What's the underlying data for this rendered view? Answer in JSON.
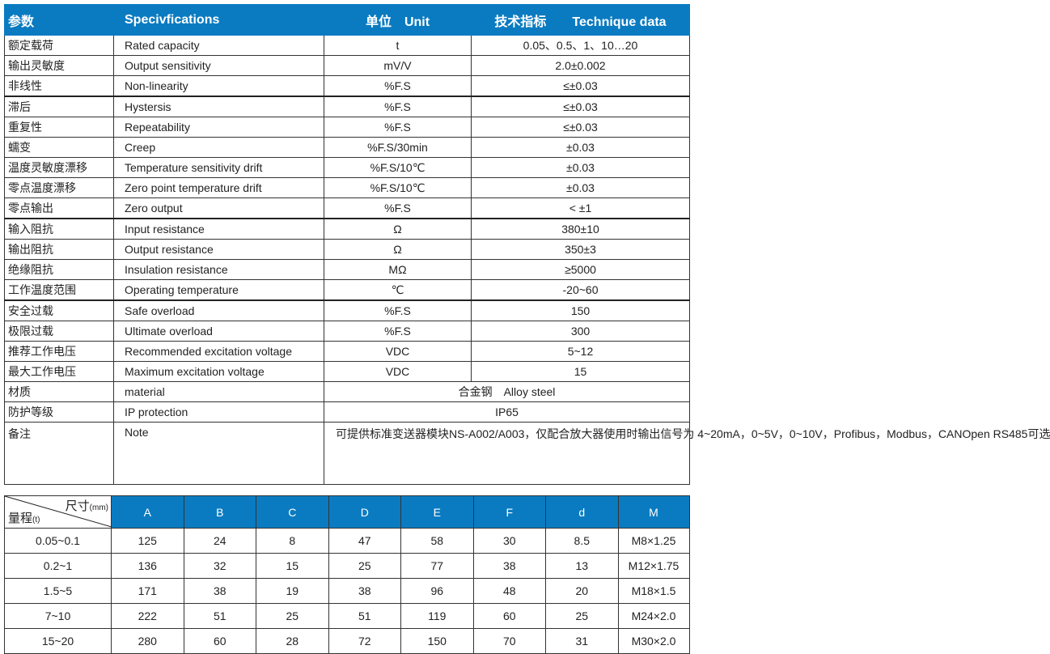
{
  "spec": {
    "headers": [
      "参数",
      "Specivfications",
      "单位　Unit",
      "技术指标　　Technique data"
    ],
    "rows": [
      [
        "额定载荷",
        "Rated capacity",
        "t",
        "0.05、0.5、1、10…20"
      ],
      [
        "输出灵敏度",
        "Output sensitivity",
        "mV/V",
        "2.0±0.002"
      ],
      [
        "非线性",
        "Non-linearity",
        "%F.S",
        "≤±0.03"
      ],
      [
        "滞后",
        "Hystersis",
        "%F.S",
        "≤±0.03"
      ],
      [
        "重复性",
        "Repeatability",
        "%F.S",
        "≤±0.03"
      ],
      [
        "蠕变",
        "Creep",
        "%F.S/30min",
        "±0.03"
      ],
      [
        "温度灵敏度漂移",
        "Temperature sensitivity drift",
        "%F.S/10℃",
        "±0.03"
      ],
      [
        "零点温度漂移",
        "Zero point temperature drift",
        "%F.S/10℃",
        "±0.03"
      ],
      [
        "零点输出",
        "Zero output",
        "%F.S",
        "< ±1"
      ],
      [
        "输入阻抗",
        "Input resistance",
        "Ω",
        "380±10"
      ],
      [
        "输出阻抗",
        "Output resistance",
        "Ω",
        "350±3"
      ],
      [
        "绝缘阻抗",
        "Insulation resistance",
        "MΩ",
        "≥5000"
      ],
      [
        "工作温度范围",
        "Operating temperature",
        "℃",
        "-20~60"
      ],
      [
        "安全过载",
        "Safe overload",
        "%F.S",
        "150"
      ],
      [
        "极限过载",
        "Ultimate overload",
        "%F.S",
        "300"
      ],
      [
        "推荐工作电压",
        "Recommended excitation voltage",
        "VDC",
        "5~12"
      ],
      [
        "最大工作电压",
        "Maximum excitation voltage",
        "VDC",
        "15"
      ]
    ],
    "material": [
      "材质",
      "material",
      "合金钢　Alloy steel"
    ],
    "ip": [
      "防护等级",
      "IP protection",
      "IP65"
    ],
    "note": [
      "备注",
      "Note",
      "可提供标准变送器模块NS-A002/A003，仅配合放大器使用时输出信号为 4~20mA，0~5V，0~10V，Profibus，Modbus，CANOpen  RS485可选"
    ]
  },
  "dims": {
    "corner_top": "尺寸",
    "corner_top_unit": "(mm)",
    "corner_bottom": "量程",
    "corner_bottom_unit": "(t)",
    "headers": [
      "A",
      "B",
      "C",
      "D",
      "E",
      "F",
      "d",
      "M"
    ],
    "rows": [
      [
        "0.05~0.1",
        "125",
        "24",
        "8",
        "47",
        "58",
        "30",
        "8.5",
        "M8×1.25"
      ],
      [
        "0.2~1",
        "136",
        "32",
        "15",
        "25",
        "77",
        "38",
        "13",
        "M12×1.75"
      ],
      [
        "1.5~5",
        "171",
        "38",
        "19",
        "38",
        "96",
        "48",
        "20",
        "M18×1.5"
      ],
      [
        "7~10",
        "222",
        "51",
        "25",
        "51",
        "119",
        "60",
        "25",
        "M24×2.0"
      ],
      [
        "15~20",
        "280",
        "60",
        "28",
        "72",
        "150",
        "70",
        "31",
        "M30×2.0"
      ]
    ]
  },
  "colors": {
    "header_bg": "#0a7bc1"
  }
}
